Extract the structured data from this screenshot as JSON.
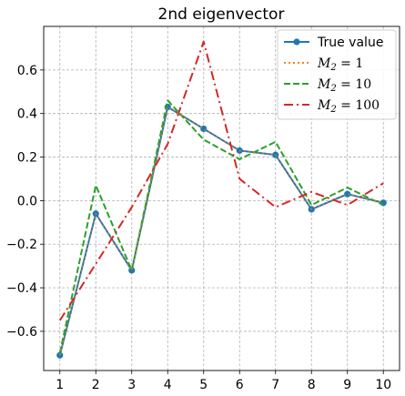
{
  "chart_data": {
    "type": "line",
    "title": "2nd eigenvector",
    "xlabel": "",
    "ylabel": "",
    "x": [
      1,
      2,
      3,
      4,
      5,
      6,
      7,
      8,
      9,
      10
    ],
    "xticks": [
      "1",
      "2",
      "3",
      "4",
      "5",
      "6",
      "7",
      "8",
      "9",
      "10"
    ],
    "yticks": [
      "−0.6",
      "−0.4",
      "−0.2",
      "0.0",
      "0.2",
      "0.4",
      "0.6"
    ],
    "xlim": [
      0.55,
      10.45
    ],
    "ylim": [
      -0.78,
      0.8
    ],
    "grid": true,
    "legend_position": "top-right",
    "series": [
      {
        "name": "True value",
        "legend_parts": [
          "True value"
        ],
        "style": "solid-marker",
        "color": "#1f77b4",
        "values": [
          -0.71,
          -0.06,
          -0.32,
          0.43,
          0.33,
          0.23,
          0.21,
          -0.04,
          0.03,
          -0.01
        ]
      },
      {
        "name": "M_2 = 1",
        "legend_parts": [
          "M",
          "2",
          " = 1"
        ],
        "style": "dotted",
        "color": "#ff7f0e",
        "values": [
          -0.71,
          -0.06,
          -0.32,
          0.43,
          0.33,
          0.23,
          0.21,
          -0.04,
          0.03,
          -0.01
        ]
      },
      {
        "name": "M_2 = 10",
        "legend_parts": [
          "M",
          "2",
          " = 10"
        ],
        "style": "dashed",
        "color": "#2ca02c",
        "values": [
          -0.7,
          0.07,
          -0.32,
          0.46,
          0.28,
          0.19,
          0.27,
          -0.02,
          0.06,
          -0.02
        ]
      },
      {
        "name": "M_2 = 100",
        "legend_parts": [
          "M",
          "2",
          " = 100"
        ],
        "style": "dashdot",
        "color": "#d62728",
        "values": [
          -0.55,
          -0.29,
          -0.03,
          0.26,
          0.73,
          0.1,
          -0.03,
          0.04,
          -0.02,
          0.08
        ]
      }
    ]
  }
}
